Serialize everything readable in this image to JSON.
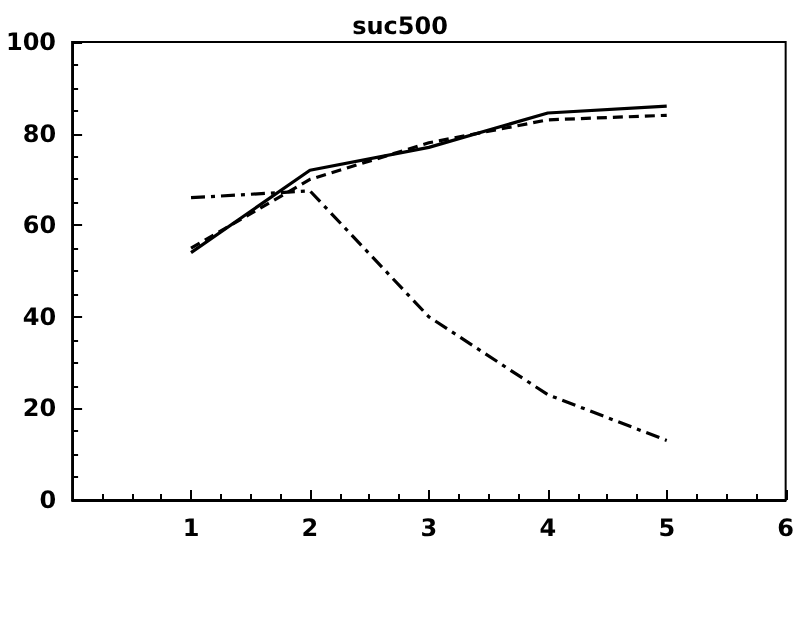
{
  "chart_data": {
    "type": "line",
    "title": "suc500",
    "x": [
      1,
      2,
      3,
      4,
      5
    ],
    "series": [
      {
        "color": "#000000",
        "values": [
          54,
          72,
          77,
          84.5,
          86
        ],
        "line_style": "solid"
      },
      {
        "color": "#000000",
        "values": [
          55,
          70,
          78,
          83,
          84
        ],
        "line_style": "dashed"
      },
      {
        "color": "#000000",
        "values": [
          66,
          67.5,
          40,
          23,
          13
        ],
        "line_style": "dashdot"
      }
    ],
    "xlim": [
      0,
      6
    ],
    "xticks": [
      1,
      2,
      3,
      4,
      5,
      6
    ],
    "ylim": [
      0,
      100
    ],
    "yticks": [
      0,
      20,
      40,
      60,
      80,
      100
    ],
    "grid": false,
    "marker": "none"
  }
}
